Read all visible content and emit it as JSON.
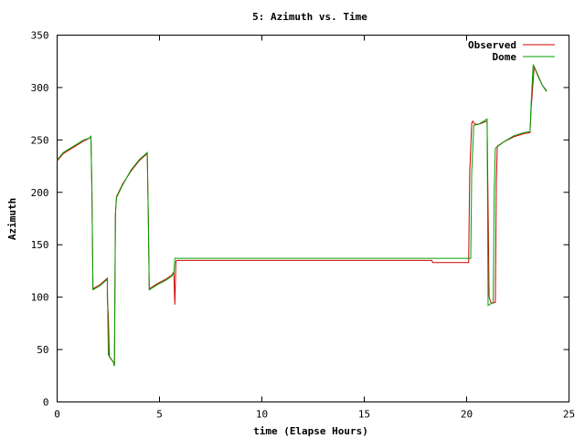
{
  "chart_data": {
    "type": "line",
    "title": "5: Azimuth vs. Time",
    "xlabel": "time (Elapse Hours)",
    "ylabel": "Azimuth",
    "xlim": [
      0,
      25
    ],
    "ylim": [
      0,
      350
    ],
    "xticks": [
      0,
      5,
      10,
      15,
      20,
      25
    ],
    "yticks": [
      0,
      50,
      100,
      150,
      200,
      250,
      300,
      350
    ],
    "grid": false,
    "legend": "top-right",
    "series": [
      {
        "name": "Observed",
        "color": "#cc0000",
        "points": [
          [
            0,
            230
          ],
          [
            0.3,
            237
          ],
          [
            0.8,
            243
          ],
          [
            1.3,
            249
          ],
          [
            1.6,
            252
          ],
          [
            1.65,
            253
          ],
          [
            1.7,
            200
          ],
          [
            1.75,
            108
          ],
          [
            2.1,
            112
          ],
          [
            2.45,
            118
          ],
          [
            2.45,
            100
          ],
          [
            2.5,
            82
          ],
          [
            2.55,
            43
          ],
          [
            2.75,
            38
          ],
          [
            2.8,
            35
          ],
          [
            2.85,
            180
          ],
          [
            2.9,
            196
          ],
          [
            3.2,
            208
          ],
          [
            3.6,
            220
          ],
          [
            4.0,
            230
          ],
          [
            4.4,
            237
          ],
          [
            4.45,
            180
          ],
          [
            4.5,
            108
          ],
          [
            4.9,
            113
          ],
          [
            5.3,
            117
          ],
          [
            5.6,
            121
          ],
          [
            5.7,
            124
          ],
          [
            5.75,
            93
          ],
          [
            5.8,
            134
          ],
          [
            5.85,
            135
          ],
          [
            10,
            135
          ],
          [
            15,
            135
          ],
          [
            18.3,
            135
          ],
          [
            18.35,
            133
          ],
          [
            20.1,
            133
          ],
          [
            20.15,
            220
          ],
          [
            20.25,
            266
          ],
          [
            20.3,
            268
          ],
          [
            20.4,
            265
          ],
          [
            20.6,
            265
          ],
          [
            21.0,
            268
          ],
          [
            21.1,
            100
          ],
          [
            21.2,
            94
          ],
          [
            21.4,
            95
          ],
          [
            21.45,
            210
          ],
          [
            21.5,
            244
          ],
          [
            21.8,
            248
          ],
          [
            22.3,
            253
          ],
          [
            22.8,
            256
          ],
          [
            23.1,
            257
          ],
          [
            23.15,
            280
          ],
          [
            23.3,
            320
          ],
          [
            23.5,
            311
          ],
          [
            23.7,
            302
          ],
          [
            23.9,
            297
          ]
        ]
      },
      {
        "name": "Dome",
        "color": "#00a000",
        "points": [
          [
            0,
            231
          ],
          [
            0.3,
            238
          ],
          [
            0.8,
            244
          ],
          [
            1.3,
            250
          ],
          [
            1.6,
            252
          ],
          [
            1.65,
            254
          ],
          [
            1.7,
            200
          ],
          [
            1.75,
            107
          ],
          [
            2.1,
            111
          ],
          [
            2.45,
            117
          ],
          [
            2.5,
            45
          ],
          [
            2.75,
            38
          ],
          [
            2.8,
            34
          ],
          [
            2.85,
            180
          ],
          [
            2.9,
            195
          ],
          [
            3.2,
            207
          ],
          [
            3.6,
            221
          ],
          [
            4.0,
            231
          ],
          [
            4.4,
            238
          ],
          [
            4.45,
            180
          ],
          [
            4.5,
            107
          ],
          [
            4.9,
            112
          ],
          [
            5.3,
            116
          ],
          [
            5.6,
            120
          ],
          [
            5.7,
            123
          ],
          [
            5.75,
            137
          ],
          [
            10,
            137
          ],
          [
            15,
            137
          ],
          [
            18.3,
            137
          ],
          [
            20.2,
            137
          ],
          [
            20.25,
            220
          ],
          [
            20.35,
            264
          ],
          [
            20.6,
            265
          ],
          [
            21.0,
            270
          ],
          [
            21.05,
            92
          ],
          [
            21.3,
            95
          ],
          [
            21.35,
            200
          ],
          [
            21.4,
            242
          ],
          [
            21.8,
            248
          ],
          [
            22.3,
            254
          ],
          [
            22.8,
            257
          ],
          [
            23.1,
            258
          ],
          [
            23.15,
            285
          ],
          [
            23.25,
            322
          ],
          [
            23.5,
            310
          ],
          [
            23.7,
            302
          ],
          [
            23.9,
            296
          ]
        ]
      }
    ]
  }
}
